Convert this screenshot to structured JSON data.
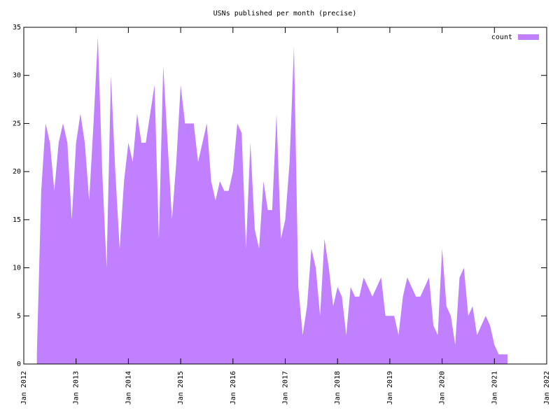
{
  "chart_data": {
    "type": "area",
    "title": "USNs published per month (precise)",
    "x": [
      "2012-04",
      "2012-05",
      "2012-06",
      "2012-07",
      "2012-08",
      "2012-09",
      "2012-10",
      "2012-11",
      "2012-12",
      "2013-01",
      "2013-02",
      "2013-03",
      "2013-04",
      "2013-05",
      "2013-06",
      "2013-07",
      "2013-08",
      "2013-09",
      "2013-10",
      "2013-11",
      "2013-12",
      "2014-01",
      "2014-02",
      "2014-03",
      "2014-04",
      "2014-05",
      "2014-06",
      "2014-07",
      "2014-08",
      "2014-09",
      "2014-10",
      "2014-11",
      "2014-12",
      "2015-01",
      "2015-02",
      "2015-03",
      "2015-04",
      "2015-05",
      "2015-06",
      "2015-07",
      "2015-08",
      "2015-09",
      "2015-10",
      "2015-11",
      "2015-12",
      "2016-01",
      "2016-02",
      "2016-03",
      "2016-04",
      "2016-05",
      "2016-06",
      "2016-07",
      "2016-08",
      "2016-09",
      "2016-10",
      "2016-11",
      "2016-12",
      "2017-01",
      "2017-02",
      "2017-03",
      "2017-04",
      "2017-05",
      "2017-06",
      "2017-07",
      "2017-08",
      "2017-09",
      "2017-10",
      "2017-11",
      "2017-12",
      "2018-01",
      "2018-02",
      "2018-03",
      "2018-04",
      "2018-05",
      "2018-06",
      "2018-07",
      "2018-08",
      "2018-09",
      "2018-10",
      "2018-11",
      "2018-12",
      "2019-01",
      "2019-02",
      "2019-03",
      "2019-04",
      "2019-05",
      "2019-06",
      "2019-07",
      "2019-08",
      "2019-09",
      "2019-10",
      "2019-11",
      "2019-12",
      "2020-01",
      "2020-02",
      "2020-03",
      "2020-04",
      "2020-05",
      "2020-06",
      "2020-07",
      "2020-08",
      "2020-09",
      "2020-10",
      "2020-11",
      "2020-12",
      "2021-01",
      "2021-02",
      "2021-03",
      "2021-04"
    ],
    "series": [
      {
        "name": "count",
        "color": "#c080ff",
        "values": [
          1,
          18,
          25,
          23,
          18,
          23,
          25,
          23,
          15,
          23,
          26,
          23,
          17,
          25,
          34,
          20,
          10,
          30,
          20,
          12,
          19,
          23,
          21,
          26,
          23,
          23,
          26,
          29,
          13,
          31,
          23,
          15,
          21,
          29,
          25,
          25,
          25,
          21,
          23,
          25,
          19,
          17,
          19,
          18,
          18,
          20,
          25,
          24,
          12,
          23,
          14,
          12,
          19,
          16,
          16,
          26,
          13,
          15,
          21,
          33,
          8,
          3,
          6,
          12,
          10,
          5,
          13,
          10,
          6,
          8,
          7,
          3,
          8,
          7,
          7,
          9,
          8,
          7,
          8,
          9,
          5,
          5,
          5,
          3,
          7,
          9,
          8,
          7,
          7,
          8,
          9,
          4,
          3,
          12,
          6,
          5,
          2,
          9,
          10,
          5,
          6,
          3,
          4,
          5,
          4,
          2,
          1,
          1,
          1
        ]
      }
    ],
    "xlim": [
      "2012-01",
      "2022-01"
    ],
    "xticks": [
      {
        "value": "2012-01",
        "label": "Jan 2012"
      },
      {
        "value": "2013-01",
        "label": "Jan 2013"
      },
      {
        "value": "2014-01",
        "label": "Jan 2014"
      },
      {
        "value": "2015-01",
        "label": "Jan 2015"
      },
      {
        "value": "2016-01",
        "label": "Jan 2016"
      },
      {
        "value": "2017-01",
        "label": "Jan 2017"
      },
      {
        "value": "2018-01",
        "label": "Jan 2018"
      },
      {
        "value": "2019-01",
        "label": "Jan 2019"
      },
      {
        "value": "2020-01",
        "label": "Jan 2020"
      },
      {
        "value": "2021-01",
        "label": "Jan 2021"
      },
      {
        "value": "2022-01",
        "label": "Jan 2022"
      }
    ],
    "ylim": [
      0,
      35
    ],
    "yticks": [
      0,
      5,
      10,
      15,
      20,
      25,
      30,
      35
    ],
    "legend": "top-right"
  }
}
